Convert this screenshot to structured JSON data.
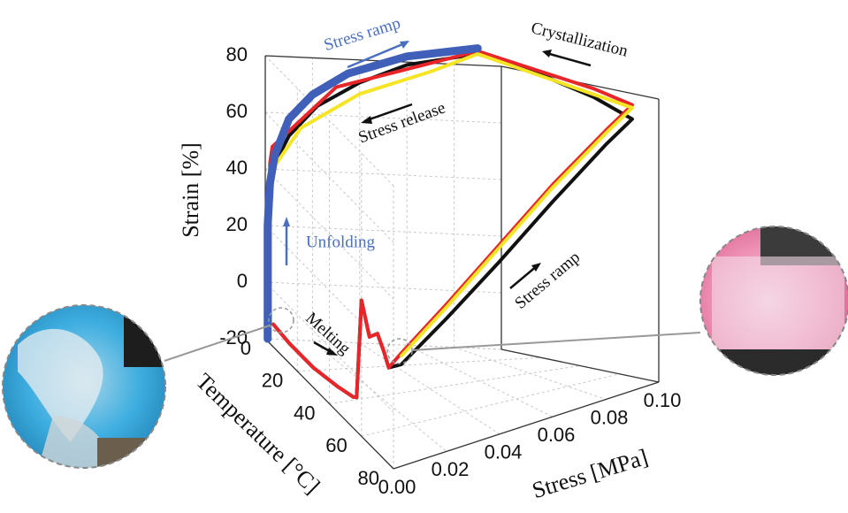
{
  "chart_data": {
    "type": "line3d",
    "y_label": "Strain [%]",
    "z_label": "Temperature [°C]",
    "x_label": "Stress [MPa]",
    "ylim": [
      -20,
      80
    ],
    "yticks": [
      -20,
      0,
      20,
      40,
      60,
      80
    ],
    "zlim": [
      0,
      80
    ],
    "zticks": [
      0,
      20,
      40,
      60,
      80
    ],
    "xlim": [
      0,
      0.1
    ],
    "xticks": [
      {
        "value": 0,
        "label": "0.00"
      },
      0.02,
      0.04,
      0.06,
      0.08,
      {
        "value": 0.1,
        "label": "0.10"
      }
    ],
    "grid": true,
    "annotations": [
      {
        "text": "Stress ramp",
        "color": "#4a6fc0"
      },
      {
        "text": "Stress release",
        "color": "#111111"
      },
      {
        "text": "Crystallization",
        "color": "#111111"
      },
      {
        "text": "Unfolding",
        "color": "#4a6fc0"
      },
      {
        "text": "Melting",
        "color": "#111111"
      },
      {
        "text": "Stress ramp",
        "color": "#111111"
      }
    ],
    "series": [
      {
        "color": "#111111",
        "x": [
          0,
          0,
          0,
          0,
          0,
          0,
          0,
          0,
          0,
          0,
          0,
          0.003,
          0.02,
          0.04,
          0.06,
          0.08,
          0.09,
          0.09,
          0.09,
          0.09,
          0.06,
          0.04,
          0.022,
          0.01,
          0.004,
          0.002,
          0.002,
          0.002,
          0.002
        ],
        "y": [
          -12,
          -13,
          -13,
          -11,
          -9,
          -8,
          28,
          18,
          22,
          18,
          14,
          16,
          27,
          41,
          56,
          70,
          76,
          80,
          83,
          84,
          79,
          72,
          63,
          52,
          42,
          36,
          20,
          0,
          -14
        ],
        "z": [
          5,
          15,
          30,
          45,
          55,
          57,
          60,
          65,
          70,
          74,
          77,
          80,
          80,
          80,
          80,
          80,
          80,
          60,
          30,
          0,
          0,
          0,
          0,
          0,
          0,
          0,
          0,
          0,
          0
        ]
      },
      {
        "color": "#e8262a",
        "x": [
          0,
          0,
          0,
          0,
          0,
          0,
          0,
          0,
          0,
          0,
          0,
          0.003,
          0.02,
          0.04,
          0.06,
          0.08,
          0.09,
          0.09,
          0.09,
          0.09,
          0.03,
          0.003,
          0.002,
          0.002,
          0.002
        ],
        "y": [
          -12,
          -13,
          -13,
          -11,
          -9,
          -8,
          28,
          18,
          22,
          18,
          14,
          20,
          32,
          47,
          62,
          75,
          81,
          83,
          84,
          85,
          70,
          48,
          42,
          20,
          -14
        ],
        "z": [
          5,
          15,
          30,
          45,
          55,
          57,
          60,
          65,
          70,
          74,
          77,
          80,
          80,
          80,
          80,
          80,
          80,
          60,
          30,
          0,
          0,
          0,
          0,
          0,
          0
        ]
      },
      {
        "color": "#f5e526",
        "x": [
          0.003,
          0.02,
          0.04,
          0.06,
          0.08,
          0.09,
          0.09,
          0.07,
          0.04,
          0.015,
          0.003,
          0.002,
          0.002
        ],
        "y": [
          19,
          31,
          46,
          61,
          74,
          80,
          84,
          77,
          68,
          55,
          40,
          20,
          -10
        ],
        "z": [
          80,
          80,
          80,
          80,
          80,
          80,
          0,
          0,
          0,
          0,
          0,
          0,
          0
        ]
      },
      {
        "color": "#3f5fb8",
        "x": [
          0.001,
          0.001,
          0.001,
          0.002,
          0.004,
          0.01,
          0.02,
          0.035,
          0.06,
          0.09
        ],
        "y": [
          -20,
          0,
          20,
          35,
          45,
          58,
          67,
          75,
          82,
          86
        ],
        "z": [
          0,
          0,
          0,
          0,
          0,
          0,
          0,
          0,
          0,
          0
        ]
      }
    ]
  }
}
